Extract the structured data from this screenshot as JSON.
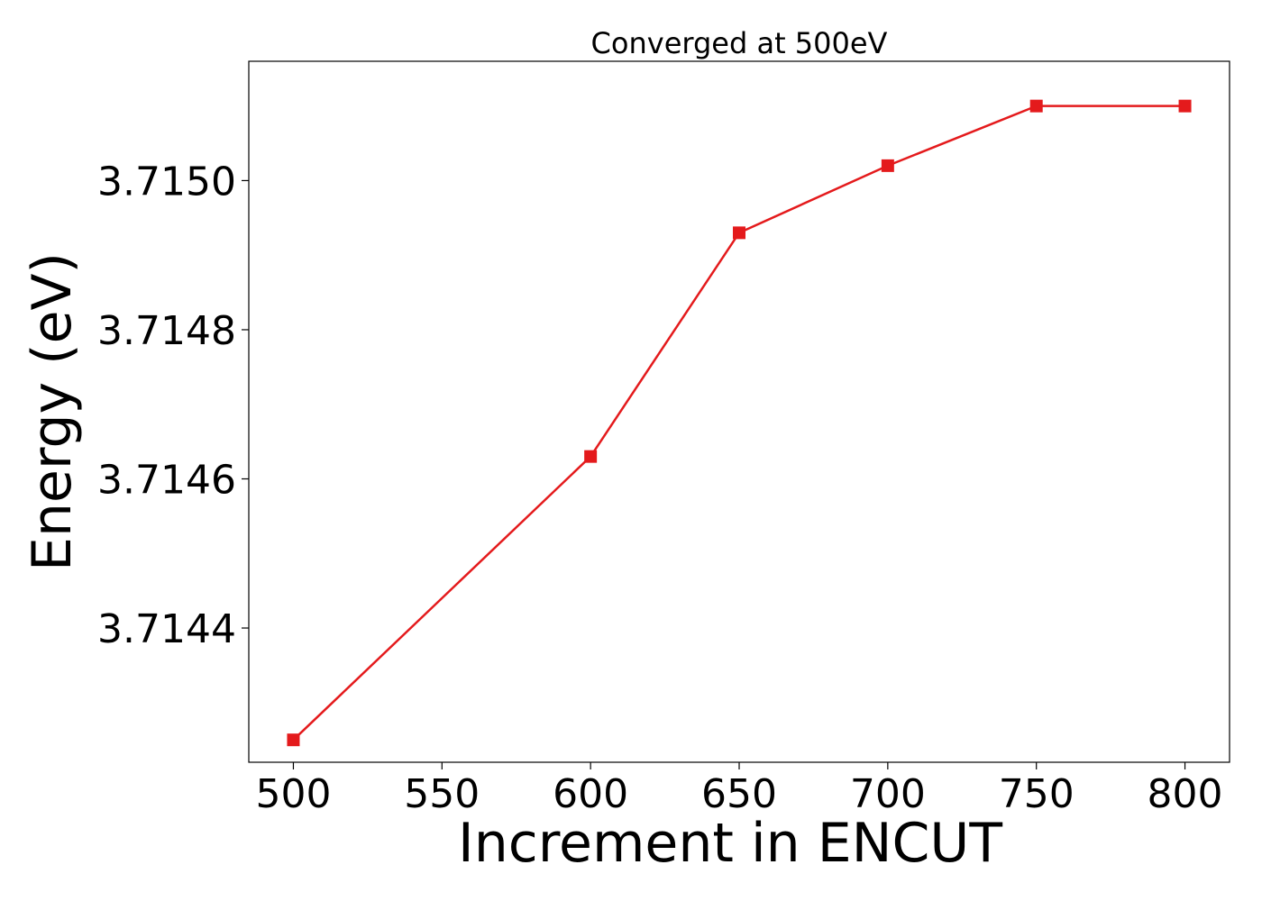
{
  "chart_data": {
    "type": "line",
    "title": "Converged at 500eV",
    "xlabel": "Increment in ENCUT",
    "ylabel": "Energy (eV)",
    "x": [
      500,
      600,
      650,
      700,
      750,
      800
    ],
    "series": [
      {
        "values": [
          3.71425,
          3.71463,
          3.71493,
          3.71502,
          3.7151,
          3.7151
        ],
        "color": "#e41a1c",
        "marker": "square"
      }
    ],
    "xticks": [
      500,
      550,
      600,
      650,
      700,
      750,
      800
    ],
    "xtick_labels": [
      "500",
      "550",
      "600",
      "650",
      "700",
      "750",
      "800"
    ],
    "yticks": [
      3.7144,
      3.7146,
      3.7148,
      3.715
    ],
    "ytick_labels": [
      "3.7144",
      "3.7146",
      "3.7148",
      "3.7150"
    ],
    "xlim": [
      485,
      815
    ],
    "ylim": [
      3.71422,
      3.71516
    ],
    "grid": false,
    "legend": false
  }
}
